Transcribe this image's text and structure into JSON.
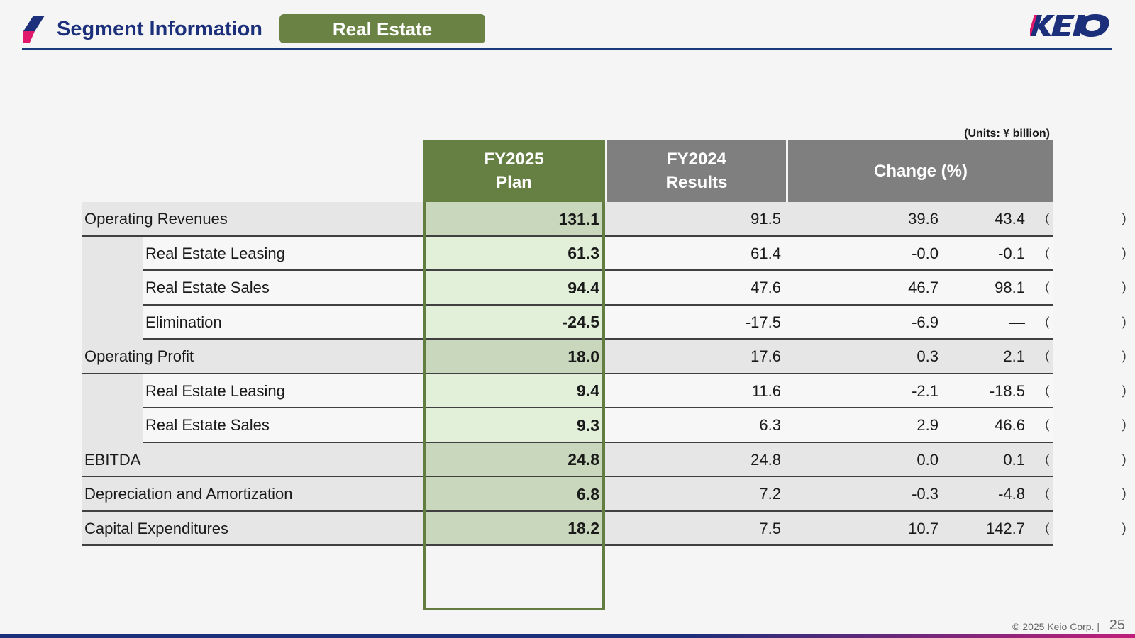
{
  "header": {
    "title": "Segment Information",
    "segment_badge": "Real Estate",
    "logo_text": "KEIO"
  },
  "units_note": "(Units: ¥ billion)",
  "table": {
    "columns": {
      "plan": [
        "FY2025",
        "Plan"
      ],
      "results": [
        "FY2024",
        "Results"
      ],
      "change": "Change (%)"
    },
    "rows": [
      {
        "label": "Operating Revenues",
        "level": "main",
        "plan": "131.1",
        "results": "91.5",
        "change": "39.6",
        "pct": "43.4"
      },
      {
        "label": "Real Estate Leasing",
        "level": "sub",
        "plan": "61.3",
        "results": "61.4",
        "change": "-0.0",
        "pct": "-0.1"
      },
      {
        "label": "Real Estate Sales",
        "level": "sub",
        "plan": "94.4",
        "results": "47.6",
        "change": "46.7",
        "pct": "98.1"
      },
      {
        "label": "Elimination",
        "level": "sub",
        "plan": "-24.5",
        "results": "-17.5",
        "change": "-6.9",
        "pct": "—"
      },
      {
        "label": "Operating Profit",
        "level": "main",
        "plan": "18.0",
        "results": "17.6",
        "change": "0.3",
        "pct": "2.1"
      },
      {
        "label": "Real Estate Leasing",
        "level": "sub",
        "plan": "9.4",
        "results": "11.6",
        "change": "-2.1",
        "pct": "-18.5"
      },
      {
        "label": "Real Estate Sales",
        "level": "sub",
        "plan": "9.3",
        "results": "6.3",
        "change": "2.9",
        "pct": "46.6"
      },
      {
        "label": "EBITDA",
        "level": "main",
        "plan": "24.8",
        "results": "24.8",
        "change": "0.0",
        "pct": "0.1"
      },
      {
        "label": "Depreciation and Amortization",
        "level": "main",
        "plan": "6.8",
        "results": "7.2",
        "change": "-0.3",
        "pct": "-4.8"
      },
      {
        "label": "Capital Expenditures",
        "level": "main",
        "plan": "18.2",
        "results": "7.5",
        "change": "10.7",
        "pct": "142.7"
      }
    ],
    "paren_open": "（",
    "paren_close": "）"
  },
  "footer": {
    "copyright": "© 2025 Keio Corp.  |",
    "page_number": "25"
  },
  "colors": {
    "navy": "#1b2f7a",
    "green_dark": "#667f42",
    "green_light": "#e2efd9",
    "gray_header": "#7f7f7f",
    "magenta": "#e0186c"
  }
}
